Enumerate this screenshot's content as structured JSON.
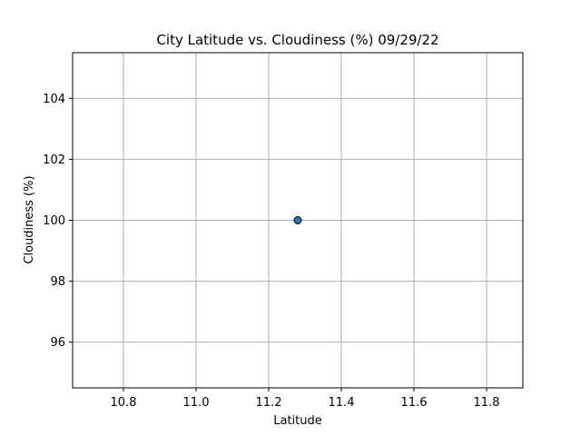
{
  "chart_data": {
    "type": "scatter",
    "title": "City Latitude vs. Cloudiness (%) 09/29/22",
    "xlabel": "Latitude",
    "ylabel": "Cloudiness (%)",
    "xlim": [
      10.66,
      11.9
    ],
    "ylim": [
      94.5,
      105.5
    ],
    "xticks": [
      10.8,
      11.0,
      11.2,
      11.4,
      11.6,
      11.8
    ],
    "xtick_labels": [
      "10.8",
      "11.0",
      "11.2",
      "11.4",
      "11.6",
      "11.8"
    ],
    "yticks": [
      96,
      98,
      100,
      102,
      104
    ],
    "ytick_labels": [
      "96",
      "98",
      "100",
      "102",
      "104"
    ],
    "grid": true,
    "points": [
      {
        "x": 11.28,
        "y": 100
      }
    ],
    "colors": {
      "marker_fill": "#1f77b4",
      "marker_edge": "#000000",
      "grid": "#b0b0b0",
      "axes": "#000000"
    }
  }
}
